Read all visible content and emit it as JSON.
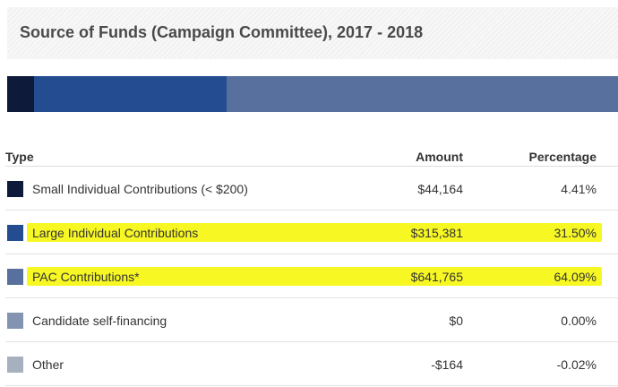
{
  "title": "Source of Funds (Campaign Committee), 2017 - 2018",
  "chart_data": {
    "type": "table",
    "columns": [
      "Type",
      "Amount",
      "Percentage"
    ],
    "rows": [
      {
        "label": "Small Individual Contributions (< $200)",
        "amount": "$44,164",
        "percentage": "4.41%",
        "value": 4.41,
        "color": "#0d1a3a",
        "highlighted": false
      },
      {
        "label": "Large Individual Contributions",
        "amount": "$315,381",
        "percentage": "31.50%",
        "value": 31.5,
        "color": "#234c91",
        "highlighted": true
      },
      {
        "label": "PAC Contributions*",
        "amount": "$641,765",
        "percentage": "64.09%",
        "value": 64.09,
        "color": "#57709d",
        "highlighted": true
      },
      {
        "label": "Candidate self-financing",
        "amount": "$0",
        "percentage": "0.00%",
        "value": 0.0,
        "color": "#8494b0",
        "highlighted": false
      },
      {
        "label": "Other",
        "amount": "-$164",
        "percentage": "-0.02%",
        "value": -0.02,
        "color": "#a7b0be",
        "highlighted": false
      }
    ]
  },
  "highlight_color": "#f7f723"
}
